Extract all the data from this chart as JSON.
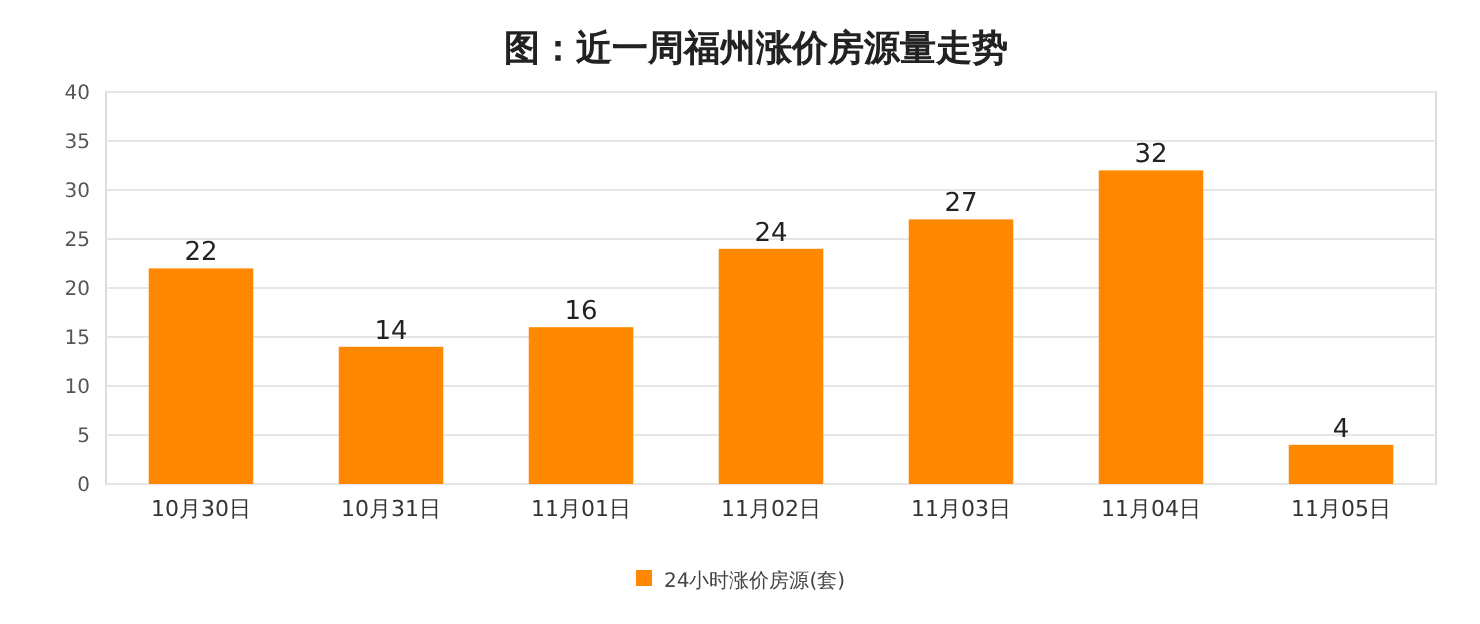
{
  "chart_data": {
    "type": "bar",
    "title": "图：近一周福州涨价房源量走势",
    "categories": [
      "10月30日",
      "10月31日",
      "11月01日",
      "11月02日",
      "11月03日",
      "11月04日",
      "11月05日"
    ],
    "series": [
      {
        "name": "24小时涨价房源(套)",
        "color": "#ff8800",
        "values": [
          22,
          14,
          16,
          24,
          27,
          32,
          4
        ]
      }
    ],
    "ylim": [
      0,
      40
    ],
    "yticks": [
      0,
      5,
      10,
      15,
      20,
      25,
      30,
      35,
      40
    ],
    "grid": "y",
    "legend": "bottom",
    "data_labels": true
  }
}
